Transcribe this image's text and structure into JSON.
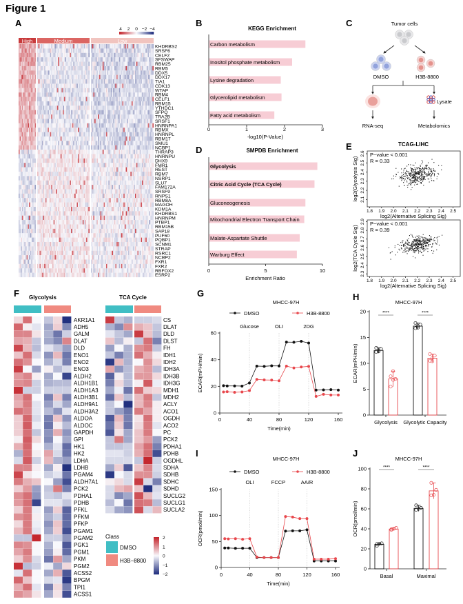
{
  "figure_title": "Figure 1",
  "panel_letters": {
    "A": "A",
    "B": "B",
    "C": "C",
    "D": "D",
    "E": "E",
    "F": "F",
    "G": "G",
    "H": "H",
    "I": "I",
    "J": "J"
  },
  "colors": {
    "heat_red": "#c4272e",
    "heat_blue": "#22307f",
    "bar_pink": "#f7cdd5",
    "dmso": "#111111",
    "h3b": "#e8474c",
    "class_dmso": "#40bec4",
    "class_h3b": "#f08a80",
    "group_high": "#c83a3b",
    "group_medium": "#db6663",
    "group_low": "#f1c4bf"
  },
  "panel_a": {
    "groups": [
      {
        "label": "High"
      },
      {
        "label": "Medium"
      },
      {
        "label": "Low"
      }
    ],
    "colorbar_ticks": [
      "4",
      "2",
      "0",
      "−2",
      "−4"
    ],
    "colorbar_range": [
      4,
      -4
    ],
    "genes": [
      "KHDRBS2",
      "SRSF6",
      "CELF2",
      "SFSWAP",
      "RBM25",
      "RBM5",
      "DDX5",
      "DDX17",
      "TIA1",
      "CDK13",
      "WTAP",
      "RBM4",
      "CELF1",
      "RBM15",
      "YTHDC1",
      "SFPQ",
      "TRA2B",
      "SRSF1",
      "HNRNPA1",
      "RBMX",
      "HNRNPL",
      "RBM17",
      "SMU1",
      "NCBP1",
      "THRAP3",
      "HNRNPU",
      "DHX9",
      "FMR1",
      "REST",
      "RBM7",
      "NSRP1",
      "SLU7",
      "FAM172A",
      "SRSF9",
      "RNPS1",
      "RBM8A",
      "MAGOH",
      "KDM1A",
      "KHDRBS1",
      "HNRNPM",
      "PTBP1",
      "RBM15B",
      "SAP18",
      "PUF60",
      "PQBP1",
      "SCNM1",
      "STRAP",
      "RSRC1",
      "NCBP2",
      "FXR1",
      "FXR2",
      "RBFOX2",
      "ESRP2"
    ],
    "group_means": "High group red (≈+1.5) for upper genes; Medium/Low mostly blue"
  },
  "panel_c": {
    "tumor_cells": "Tumor cells",
    "dmso": "DMSO",
    "h3b": "H3B-8800",
    "lysate": "Lysate",
    "rnaseq": "RNA-seq",
    "metabolomics": "Metabolomics"
  },
  "panel_f": {
    "title_glycolysis": "Glycolysis",
    "title_tca": "TCA Cycle",
    "legend_title": "Class",
    "legend_dmso": "DMSO",
    "legend_h3b": "H3B−8800",
    "colorbar_ticks": [
      "2",
      "1",
      "0",
      "−1",
      "−2"
    ],
    "glycolysis": {
      "genes": [
        "AKR1A1",
        "ADH5",
        "GALM",
        "DLAT",
        "DLD",
        "ENO1",
        "ENO2",
        "ENO3",
        "ALDH2",
        "ALDH1B1",
        "ALDH1A3",
        "ALDH3B1",
        "ALDH9A1",
        "ALDH3A2",
        "ALDOA",
        "ALDOC",
        "GAPDH",
        "GPI",
        "HK1",
        "HK2",
        "LDHA",
        "LDHB",
        "PGAM4",
        "ALDH7A1",
        "PCK2",
        "PDHA1",
        "PDHB",
        "PFKL",
        "PFKM",
        "PFKP",
        "PGAM1",
        "PGAM2",
        "PGK1",
        "PGM1",
        "PKM",
        "PGM2",
        "ACSS2",
        "BPGM",
        "TPI1",
        "ACSS1"
      ],
      "values": [
        [
          0.3,
          1.3,
          0,
          -0.5,
          0.3,
          -2
        ],
        [
          1.4,
          0.1,
          -0.2,
          -0.8,
          0.4,
          -1.1
        ],
        [
          1.1,
          1.1,
          0.2,
          -0.7,
          -1.3,
          -0.4
        ],
        [
          0.8,
          0.7,
          -0.5,
          -0.8,
          -1.1,
          1.1
        ],
        [
          1.7,
          0.6,
          -0.6,
          -0.2,
          -0.5,
          -0.9
        ],
        [
          0.5,
          1.3,
          -0.3,
          -1,
          0.6,
          -1.3
        ],
        [
          1.3,
          1,
          0,
          -0.7,
          -0.3,
          -1.2
        ],
        [
          1.8,
          0,
          -0.9,
          0.1,
          -0.6,
          -0.3
        ],
        [
          0.9,
          1.1,
          0.1,
          -0.8,
          0,
          -1.8
        ],
        [
          1,
          1.1,
          -0.4,
          -0.7,
          -0.6,
          -0.6
        ],
        [
          1.9,
          -0.4,
          -0.4,
          -0.4,
          -0.4,
          -0.4
        ],
        [
          0.8,
          1.3,
          0,
          -1.2,
          0.5,
          -1.2
        ],
        [
          0.7,
          1.2,
          -0.2,
          -0.9,
          -0.3,
          -0.8
        ],
        [
          1.3,
          1.1,
          -0.2,
          -0.6,
          -1,
          -0.2
        ],
        [
          0.4,
          1.4,
          -0.3,
          -1.2,
          0.5,
          -1
        ],
        [
          0.4,
          1.5,
          -0.1,
          -1.3,
          0.1,
          -0.6
        ],
        [
          0.4,
          1.3,
          -0.5,
          -1,
          0.7,
          -1
        ],
        [
          0.1,
          1.5,
          0.3,
          -1.1,
          0,
          -0.8
        ],
        [
          0.7,
          1.4,
          0,
          -0.7,
          -0.2,
          -1.4
        ],
        [
          -0.7,
          1.3,
          0.1,
          0.8,
          -0.3,
          -1.3
        ],
        [
          -0.3,
          1.5,
          -0.4,
          0.6,
          -0.7,
          -0.9
        ],
        [
          1.1,
          1.1,
          0.1,
          -0.8,
          0.1,
          -2
        ],
        [
          1.7,
          0.2,
          0,
          -0.4,
          -0.2,
          -1.3
        ],
        [
          1.2,
          0.7,
          0.5,
          0,
          -0.9,
          -1.7
        ],
        [
          0.4,
          0.9,
          -0.9,
          -0.5,
          1.2,
          -1.2
        ],
        [
          1,
          1.3,
          -1,
          -0.4,
          -0.5,
          -0.2
        ],
        [
          0.9,
          1.3,
          -1.8,
          -0.2,
          -0.2,
          -0.5
        ],
        [
          0.4,
          1.2,
          -0.1,
          -0.9,
          0.4,
          -1.5
        ],
        [
          1,
          1.2,
          0.1,
          -0.7,
          -0.4,
          -1.4
        ],
        [
          0.3,
          1.2,
          -0.1,
          -1,
          0.5,
          -1.4
        ],
        [
          0.6,
          1.2,
          -0.2,
          -0.8,
          0.4,
          -1.7
        ],
        [
          -0.5,
          -0.5,
          2,
          -0.4,
          -0.4,
          -1
        ],
        [
          1.1,
          1,
          0,
          -0.7,
          0,
          -1.6
        ],
        [
          0.8,
          1.2,
          0,
          -0.9,
          0.1,
          -1.4
        ],
        [
          0.4,
          1,
          -0.3,
          -1.3,
          0.9,
          -0.8
        ],
        [
          1.9,
          -0.6,
          -0.4,
          -0.1,
          -0.8,
          0.3
        ],
        [
          -0.2,
          1.3,
          0,
          -0.8,
          0.7,
          -1.6
        ],
        [
          1.4,
          0.5,
          0,
          -0.3,
          -0.2,
          -1.9
        ],
        [
          0.7,
          1.3,
          -0.2,
          -1.2,
          0.3,
          -1.2
        ],
        [
          1,
          0.8,
          0.2,
          -0.8,
          0.2,
          -1.7
        ]
      ]
    },
    "tca": {
      "genes": [
        "CS",
        "DLAT",
        "DLD",
        "DLST",
        "FH",
        "IDH1",
        "IDH2",
        "IDH3A",
        "IDH3B",
        "IDH3G",
        "MDH1",
        "MDH2",
        "ACLY",
        "ACO1",
        "OGDH",
        "ACO2",
        "PC",
        "PCK2",
        "PDHA1",
        "PDHB",
        "OGDHL",
        "SDHA",
        "SDHB",
        "SDHC",
        "SDHD",
        "SUCLG2",
        "SUCLG1",
        "SUCLA2"
      ],
      "values": [
        [
          1.8,
          -0.5,
          -0.7,
          -0.4,
          -0.4,
          -0.3
        ],
        [
          -0.7,
          -1.1,
          1,
          0.7,
          0.5,
          -0.5
        ],
        [
          -0.2,
          -0.5,
          -0.8,
          1.8,
          0.5,
          -0.6
        ],
        [
          0.5,
          -0.6,
          0.1,
          -0.5,
          1.3,
          -1.2
        ],
        [
          -0.9,
          0,
          -0.7,
          1,
          1.2,
          -0.5
        ],
        [
          -0.5,
          -1.2,
          -0.7,
          1.3,
          0.7,
          0.1
        ],
        [
          -1.9,
          0.6,
          -0.7,
          0,
          1,
          0.3
        ],
        [
          0.8,
          -1,
          -0.6,
          0.7,
          0.9,
          -0.6
        ],
        [
          -1.5,
          0.1,
          -0.6,
          0.9,
          0.9,
          0.3
        ],
        [
          -1.2,
          0.3,
          -0.6,
          0.1,
          1.5,
          -0.1
        ],
        [
          -0.8,
          -0.1,
          -1.3,
          1.3,
          0.4,
          0.3
        ],
        [
          -1.4,
          0.5,
          -0.6,
          0.6,
          1.2,
          -0.5
        ],
        [
          -0.5,
          0,
          -2,
          0.6,
          1.1,
          0.1
        ],
        [
          -0.5,
          -0.9,
          -1.3,
          1.2,
          0.8,
          0.1
        ],
        [
          -1.6,
          0.6,
          -1.2,
          0.2,
          1.3,
          0.1
        ],
        [
          -1.3,
          0.4,
          -1.3,
          0.3,
          1.2,
          -0.2
        ],
        [
          -1.6,
          0.2,
          -0.8,
          0.5,
          1.2,
          0
        ],
        [
          -0.5,
          1.2,
          -0.8,
          0.5,
          0.9,
          -0.9
        ],
        [
          -0.5,
          -0.5,
          -0.4,
          0.8,
          1.3,
          -1.2
        ],
        [
          -0.2,
          -0.2,
          -0.4,
          0.7,
          1.3,
          -1.7
        ],
        [
          -0.3,
          -0.3,
          -0.3,
          -0.5,
          2,
          -0.4
        ],
        [
          -0.8,
          0.4,
          -1.6,
          0.5,
          1.1,
          -0.3
        ],
        [
          -1.9,
          0,
          -0.3,
          1,
          1,
          -0.4
        ],
        [
          0.1,
          0.3,
          -0.3,
          1.8,
          -0.3,
          -1.2
        ],
        [
          -0.3,
          0.6,
          0.8,
          0.5,
          -2,
          -0.3
        ],
        [
          -0.3,
          -1.1,
          -0.8,
          1.6,
          0.6,
          -0.2
        ],
        [
          -0.6,
          0,
          -1.3,
          1.3,
          1.2,
          -0.6
        ],
        [
          -0.3,
          -0.8,
          -1,
          1.6,
          -0.3,
          0.6
        ]
      ]
    }
  },
  "chart_data": [
    {
      "panel": "B",
      "type": "bar",
      "orientation": "horizontal",
      "title": "KEGG Enrichment",
      "xlabel": "-log10(P-Value)",
      "xlim": [
        0,
        3
      ],
      "xticks": [
        "0",
        "1",
        "2",
        "3"
      ],
      "categories": [
        "Carbon metabolism",
        "Inositol phosphate metabolism",
        "Lysine degradation",
        "Glycerolipid metabolism",
        "Fatty acid metabolism"
      ],
      "values": [
        2.55,
        2.2,
        1.9,
        1.92,
        1.73
      ]
    },
    {
      "panel": "D",
      "type": "bar",
      "orientation": "horizontal",
      "title": "SMPDB Enrichment",
      "xlabel": "Enrichment Ratio",
      "xlim": [
        0,
        10
      ],
      "xticks": [
        "0",
        "5",
        "10"
      ],
      "categories": [
        "Glycolysis",
        "Citric Acid Cycle (TCA Cycle)",
        "Gluconeogenesis",
        "Mitochondrial Electron Transport Chain",
        "Malate-Aspartate Shuttle",
        "Warburg Effect"
      ],
      "bold": [
        true,
        true,
        false,
        false,
        false,
        false
      ],
      "values": [
        9.55,
        9.3,
        8.5,
        8.4,
        8.0,
        7.75
      ]
    },
    {
      "panel": "E",
      "type": "scatter",
      "title": "TCAG-LIHC",
      "xlabel": "log2(Alternative Splicing Sig)",
      "ylabel": "log2(Glycolysis Sig)",
      "annotation_p": "P−value < 0.001",
      "annotation_r": "R = 0.33",
      "r": 0.33,
      "xticks": [
        "1.8",
        "1.9",
        "2.0",
        "2.1",
        "2.2",
        "2.3",
        "2.4",
        "2.5"
      ],
      "yticks": [
        "2.1",
        "2.2",
        "2.3",
        "2.4",
        "2.5",
        "2.6"
      ],
      "xlim": [
        1.78,
        2.56
      ],
      "ylim": [
        2.02,
        2.63
      ]
    },
    {
      "panel": "E",
      "type": "scatter",
      "xlabel": "log2(Alternative Splicing Sig)",
      "ylabel": "log2(TCA Cycle Sig)",
      "annotation_p": "P−value < 0.001",
      "annotation_r": "R = 0.39",
      "r": 0.39,
      "xticks": [
        "1.8",
        "1.9",
        "2.0",
        "2.1",
        "2.2",
        "2.3",
        "2.4",
        "2.5"
      ],
      "yticks": [
        "2.3",
        "2.4",
        "2.5",
        "2.6",
        "2.7",
        "2.8",
        "2.9"
      ],
      "xlim": [
        1.78,
        2.56
      ],
      "ylim": [
        2.27,
        2.92
      ]
    },
    {
      "panel": "G",
      "type": "line",
      "title": "MHCC-97H",
      "xlabel": "Time(min)",
      "ylabel": "ECAR(mPH/min)",
      "xlim": [
        0,
        160
      ],
      "ylim": [
        0,
        60
      ],
      "xticks": [
        "0",
        "40",
        "80",
        "120",
        "160"
      ],
      "yticks": [
        "0",
        "20",
        "40",
        "60"
      ],
      "injections": [
        {
          "label": "Glucose",
          "t": 40
        },
        {
          "label": "OLI",
          "t": 80
        },
        {
          "label": "2DG",
          "t": 120
        }
      ],
      "x": [
        5,
        10,
        20,
        30,
        40,
        50,
        60,
        70,
        80,
        90,
        100,
        110,
        120,
        130,
        140,
        150,
        160
      ],
      "series": [
        {
          "name": "DMSO",
          "values": [
            20.5,
            20.3,
            20.3,
            20.2,
            22.5,
            35.2,
            35,
            35.4,
            35.3,
            53.2,
            53.1,
            53.8,
            52.5,
            17.2,
            17.3,
            17.5,
            17.2
          ]
        },
        {
          "name": "H3B-8800",
          "values": [
            15.8,
            16,
            15.5,
            15.8,
            16.8,
            25.2,
            24.8,
            24.7,
            24.2,
            35.2,
            33.8,
            34.5,
            35,
            12.5,
            14,
            13.5,
            13.5
          ]
        }
      ]
    },
    {
      "panel": "H",
      "type": "bar",
      "title": "MHCC-97H",
      "ylabel": "ECAR(mPH/min)",
      "ylim": [
        0,
        20
      ],
      "yticks": [
        "0",
        "5",
        "10",
        "15",
        "20"
      ],
      "categories": [
        "Glycolysis",
        "Glycolytic Capacity"
      ],
      "significance": "****",
      "series": [
        {
          "name": "DMSO",
          "values": [
            12.5,
            17.2
          ],
          "points": [
            [
              12.2,
              12.5,
              12.8,
              13,
              12.3
            ],
            [
              16.8,
              17.2,
              17.5,
              17.8,
              16.9
            ]
          ]
        },
        {
          "name": "H3B-8800",
          "values": [
            7.0,
            11.0
          ],
          "points": [
            [
              5.5,
              6.8,
              7,
              7.5,
              8.5
            ],
            [
              10.5,
              11,
              11.5,
              11.8,
              10.4
            ]
          ]
        }
      ]
    },
    {
      "panel": "I",
      "type": "line",
      "title": "MHCC-97H",
      "xlabel": "Time(min)",
      "ylabel": "OCR(pmol/min)",
      "xlim": [
        0,
        160
      ],
      "ylim": [
        0,
        150
      ],
      "xticks": [
        "0",
        "40",
        "80",
        "120",
        "160"
      ],
      "yticks": [
        "0",
        "50",
        "100",
        "150"
      ],
      "injections": [
        {
          "label": "OLI",
          "t": 40
        },
        {
          "label": "FCCP",
          "t": 80
        },
        {
          "label": "AA/R",
          "t": 120
        }
      ],
      "x": [
        5,
        10,
        20,
        30,
        40,
        50,
        60,
        70,
        80,
        90,
        100,
        110,
        120,
        130,
        140,
        150,
        160
      ],
      "series": [
        {
          "name": "DMSO",
          "values": [
            37.5,
            37.5,
            36.8,
            37,
            37,
            19,
            19,
            19,
            19,
            70,
            70.5,
            70.5,
            72.5,
            12.5,
            12.5,
            12.5,
            12.5
          ]
        },
        {
          "name": "H3B-8800",
          "values": [
            55.5,
            55,
            55.5,
            54.3,
            55.5,
            20,
            19,
            19,
            19,
            98,
            97,
            94,
            94,
            16,
            16,
            16,
            17
          ]
        }
      ]
    },
    {
      "panel": "J",
      "type": "bar",
      "title": "MHCC-97H",
      "ylabel": "OCR(pmol/min)",
      "ylim": [
        0,
        100
      ],
      "yticks": [
        "0",
        "20",
        "40",
        "60",
        "80",
        "100"
      ],
      "categories": [
        "Basal",
        "Maximal"
      ],
      "significance": "****",
      "series": [
        {
          "name": "DMSO",
          "values": [
            24.5,
            60.5
          ],
          "points": [
            [
              23,
              25,
              25.5,
              24.8
            ],
            [
              59,
              60,
              61,
              63.5
            ]
          ]
        },
        {
          "name": "H3B-8800",
          "values": [
            39.8,
            78
          ],
          "points": [
            [
              39,
              40,
              41,
              39.5
            ],
            [
              73.5,
              74,
              79,
              86
            ]
          ]
        }
      ]
    }
  ]
}
